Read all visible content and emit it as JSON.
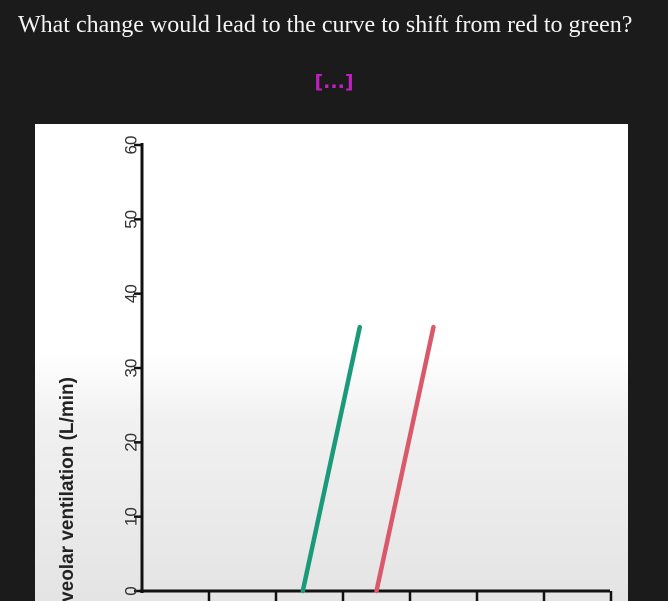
{
  "question": {
    "text": "What change would lead to the curve to shift from red to green?"
  },
  "hidden_content": {
    "placeholder": "[...]",
    "color": "#c21fc2"
  },
  "chart_data": {
    "type": "line",
    "title": "",
    "ylabel": "Alveolar ventilation (L/min)",
    "xlabel": "",
    "ylim": [
      0,
      60
    ],
    "y_ticks": [
      0,
      10,
      20,
      30,
      40,
      50,
      60
    ],
    "x_tick_count": 8,
    "grid": false,
    "series": [
      {
        "color": "#1a9a78",
        "x": [
          2.4,
          3.25
        ],
        "values": [
          0,
          35.5
        ]
      },
      {
        "color": "#d9596b",
        "x": [
          3.5,
          4.35
        ],
        "values": [
          0,
          35.5
        ]
      }
    ]
  }
}
